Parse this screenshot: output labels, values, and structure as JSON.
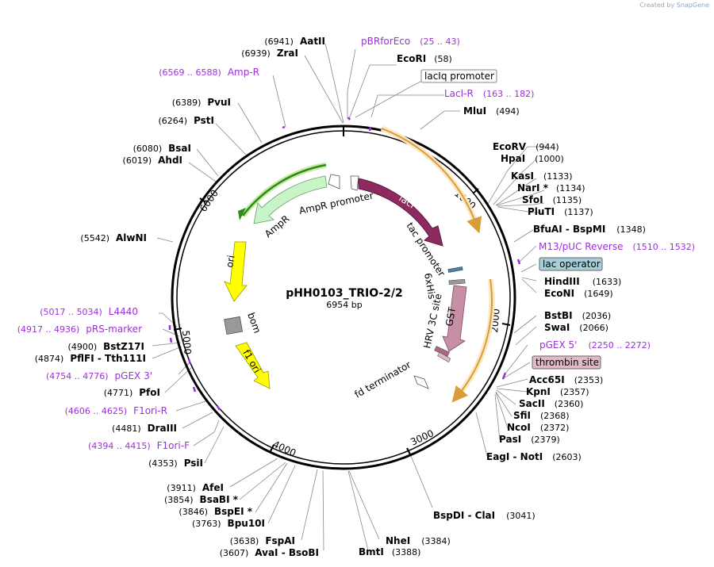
{
  "watermark": {
    "prefix": "Created by",
    "brand": "SnapGene"
  },
  "plasmid": {
    "name": "pHH0103_TRIO-2/2",
    "size": "6954 bp"
  },
  "colors": {
    "primer": "#9b30d9",
    "lacI": "#8e2a5f",
    "ampR": "#c8f5c8",
    "ori": "#ffff00",
    "gst": "#c78fa6",
    "orf": "#e8a848",
    "operator": "#a6d0d9",
    "thrombin": "#e1b9c9"
  },
  "ticks": [
    "1000",
    "2000",
    "3000",
    "4000",
    "5000",
    "6000"
  ],
  "right_labels": [
    {
      "name": "pBRforEco",
      "pos": "(25 .. 43)",
      "kind": "primer"
    },
    {
      "name": "EcoRI",
      "pos": "(58)",
      "kind": "enzyme"
    },
    {
      "name": "lacIq promoter",
      "pos": "",
      "kind": "box-white"
    },
    {
      "name": "LacI-R",
      "pos": "(163 .. 182)",
      "kind": "primer"
    },
    {
      "name": "MluI",
      "pos": "(494)",
      "kind": "enzyme"
    },
    {
      "name": "EcoRV",
      "pos": "(944)",
      "kind": "enzyme"
    },
    {
      "name": "HpaI",
      "pos": "(1000)",
      "kind": "enzyme"
    },
    {
      "name": "KasI",
      "pos": "(1133)",
      "kind": "enzyme"
    },
    {
      "name": "NarI *",
      "pos": "(1134)",
      "kind": "enzyme"
    },
    {
      "name": "SfoI",
      "pos": "(1135)",
      "kind": "enzyme"
    },
    {
      "name": "PluTI",
      "pos": "(1137)",
      "kind": "enzyme"
    },
    {
      "name": "BfuAI - BspMI",
      "pos": "(1348)",
      "kind": "enzyme"
    },
    {
      "name": "M13/pUC Reverse",
      "pos": "(1510 .. 1532)",
      "kind": "primer"
    },
    {
      "name": "lac operator",
      "pos": "",
      "kind": "box-blue"
    },
    {
      "name": "HindIII",
      "pos": "(1633)",
      "kind": "enzyme"
    },
    {
      "name": "EcoNI",
      "pos": "(1649)",
      "kind": "enzyme"
    },
    {
      "name": "BstBI",
      "pos": "(2036)",
      "kind": "enzyme"
    },
    {
      "name": "SwaI",
      "pos": "(2066)",
      "kind": "enzyme"
    },
    {
      "name": "pGEX 5'",
      "pos": "(2250 .. 2272)",
      "kind": "primer"
    },
    {
      "name": "thrombin site",
      "pos": "",
      "kind": "box-pink"
    },
    {
      "name": "Acc65I",
      "pos": "(2353)",
      "kind": "enzyme"
    },
    {
      "name": "KpnI",
      "pos": "(2357)",
      "kind": "enzyme"
    },
    {
      "name": "SacII",
      "pos": "(2360)",
      "kind": "enzyme"
    },
    {
      "name": "SfiI",
      "pos": "(2368)",
      "kind": "enzyme"
    },
    {
      "name": "NcoI",
      "pos": "(2372)",
      "kind": "enzyme"
    },
    {
      "name": "PasI",
      "pos": "(2379)",
      "kind": "enzyme"
    },
    {
      "name": "EagI - NotI",
      "pos": "(2603)",
      "kind": "enzyme"
    },
    {
      "name": "BspDI - ClaI",
      "pos": "(3041)",
      "kind": "enzyme"
    },
    {
      "name": "NheI",
      "pos": "(3384)",
      "kind": "enzyme"
    },
    {
      "name": "BmtI",
      "pos": "(3388)",
      "kind": "enzyme"
    }
  ],
  "left_labels": [
    {
      "name": "AatII",
      "pos": "(6941)",
      "kind": "enzyme"
    },
    {
      "name": "ZraI",
      "pos": "(6939)",
      "kind": "enzyme"
    },
    {
      "name": "Amp-R",
      "pos": "(6569 .. 6588)",
      "kind": "primer"
    },
    {
      "name": "PvuI",
      "pos": "(6389)",
      "kind": "enzyme"
    },
    {
      "name": "PstI",
      "pos": "(6264)",
      "kind": "enzyme"
    },
    {
      "name": "BsaI",
      "pos": "(6080)",
      "kind": "enzyme"
    },
    {
      "name": "AhdI",
      "pos": "(6019)",
      "kind": "enzyme"
    },
    {
      "name": "AlwNI",
      "pos": "(5542)",
      "kind": "enzyme"
    },
    {
      "name": "L4440",
      "pos": "(5017 .. 5034)",
      "kind": "primer"
    },
    {
      "name": "pRS-marker",
      "pos": "(4917 .. 4936)",
      "kind": "primer"
    },
    {
      "name": "BstZ17I",
      "pos": "(4900)",
      "kind": "enzyme"
    },
    {
      "name": "PflFI - Tth111I",
      "pos": "(4874)",
      "kind": "enzyme"
    },
    {
      "name": "pGEX 3'",
      "pos": "(4754 .. 4776)",
      "kind": "primer"
    },
    {
      "name": "PfoI",
      "pos": "(4771)",
      "kind": "enzyme"
    },
    {
      "name": "F1ori-R",
      "pos": "(4606 .. 4625)",
      "kind": "primer"
    },
    {
      "name": "DraIII",
      "pos": "(4481)",
      "kind": "enzyme"
    },
    {
      "name": "F1ori-F",
      "pos": "(4394 .. 4415)",
      "kind": "primer"
    },
    {
      "name": "PsiI",
      "pos": "(4353)",
      "kind": "enzyme"
    },
    {
      "name": "AfeI",
      "pos": "(3911)",
      "kind": "enzyme"
    },
    {
      "name": "BsaBI *",
      "pos": "(3854)",
      "kind": "enzyme"
    },
    {
      "name": "BspEI *",
      "pos": "(3846)",
      "kind": "enzyme"
    },
    {
      "name": "Bpu10I",
      "pos": "(3763)",
      "kind": "enzyme"
    },
    {
      "name": "FspAI",
      "pos": "(3638)",
      "kind": "enzyme"
    },
    {
      "name": "AvaI - BsoBI",
      "pos": "(3607)",
      "kind": "enzyme"
    }
  ],
  "features": {
    "lacI": "lacI",
    "ampR": "AmpR",
    "ampR_promoter": "AmpR promoter",
    "tac_promoter": "tac promoter",
    "sixhis": "6xHis",
    "hrv": "HRV 3C site",
    "gst": "GST",
    "fd_terminator": "fd terminator",
    "ori": "ori",
    "bom": "bom",
    "f1ori": "f1 ori"
  }
}
